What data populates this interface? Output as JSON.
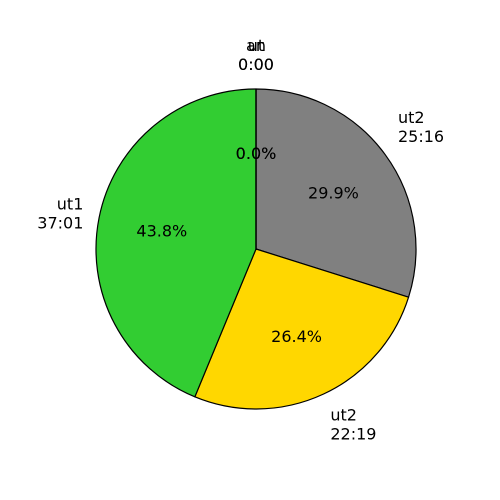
{
  "chart_data": {
    "type": "pie",
    "title": "",
    "slices": [
      {
        "label": "ut2",
        "time": "25:16",
        "value": 29.9,
        "pct_label": "29.9%",
        "color": "#808080"
      },
      {
        "label": "ut2",
        "time": "22:19",
        "value": 26.4,
        "pct_label": "26.4%",
        "color": "#ffd700"
      },
      {
        "label": "ut1",
        "time": "37:01",
        "value": 43.8,
        "pct_label": "43.8%",
        "color": "#32cd32"
      },
      {
        "label": "an",
        "time": "0:00",
        "value": 0.0,
        "pct_label": "0.0%",
        "color": "#000000"
      },
      {
        "label": "ut",
        "time": "0:00",
        "value": 0.0,
        "pct_label": "0.0%",
        "color": "#000000"
      }
    ]
  }
}
